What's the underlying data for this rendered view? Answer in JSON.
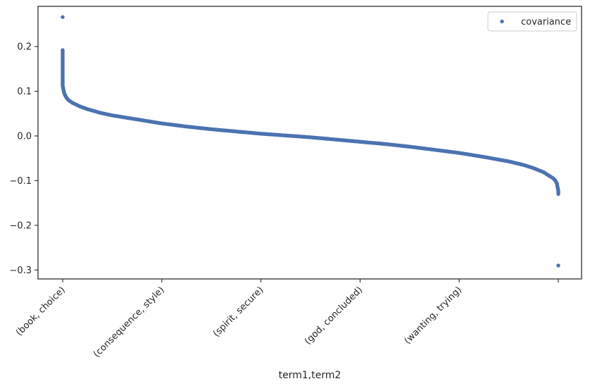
{
  "chart_data": {
    "type": "scatter",
    "xlabel": "term1,term2",
    "ylabel": "",
    "x_tick_labels": [
      "(book, choice)",
      "(consequence, style)",
      "(spirit, secure)",
      "(god, concluded)",
      "(wanting, trying)",
      ""
    ],
    "y_ticks": [
      -0.3,
      -0.2,
      -0.1,
      0.0,
      0.1,
      0.2
    ],
    "y_tick_labels": [
      "−0.3",
      "−0.2",
      "−0.1",
      "0.0",
      "0.1",
      "0.2"
    ],
    "ylim": [
      -0.32,
      0.29
    ],
    "grid": false,
    "legend": {
      "position": "top-right",
      "entries": [
        "covariance"
      ]
    },
    "colors": {
      "series": "#4c72b0",
      "axis": "#262626"
    },
    "series": [
      {
        "name": "covariance",
        "points": [
          [
            0.0,
            0.266
          ],
          [
            0.0,
            0.192
          ],
          [
            0.0,
            0.135
          ],
          [
            0.0,
            0.127
          ],
          [
            0.0,
            0.122
          ],
          [
            0.0,
            0.117
          ],
          [
            0.0,
            0.112
          ],
          [
            0.001,
            0.107
          ],
          [
            0.002,
            0.101
          ],
          [
            0.003,
            0.096
          ],
          [
            0.005,
            0.091
          ],
          [
            0.008,
            0.085
          ],
          [
            0.012,
            0.08
          ],
          [
            0.02,
            0.074
          ],
          [
            0.035,
            0.066
          ],
          [
            0.05,
            0.06
          ],
          [
            0.075,
            0.052
          ],
          [
            0.1,
            0.046
          ],
          [
            0.15,
            0.037
          ],
          [
            0.2,
            0.028
          ],
          [
            0.25,
            0.021
          ],
          [
            0.3,
            0.015
          ],
          [
            0.35,
            0.01
          ],
          [
            0.4,
            0.005
          ],
          [
            0.45,
            0.001
          ],
          [
            0.5,
            -0.003
          ],
          [
            0.55,
            -0.008
          ],
          [
            0.6,
            -0.013
          ],
          [
            0.65,
            -0.018
          ],
          [
            0.7,
            -0.024
          ],
          [
            0.75,
            -0.031
          ],
          [
            0.8,
            -0.038
          ],
          [
            0.85,
            -0.047
          ],
          [
            0.9,
            -0.057
          ],
          [
            0.93,
            -0.065
          ],
          [
            0.95,
            -0.072
          ],
          [
            0.97,
            -0.081
          ],
          [
            0.98,
            -0.088
          ],
          [
            0.99,
            -0.095
          ],
          [
            0.994,
            -0.1
          ],
          [
            0.997,
            -0.106
          ],
          [
            0.998,
            -0.112
          ],
          [
            0.999,
            -0.117
          ],
          [
            1.0,
            -0.123
          ],
          [
            1.0,
            -0.13
          ],
          [
            1.0,
            -0.29
          ]
        ]
      }
    ]
  }
}
